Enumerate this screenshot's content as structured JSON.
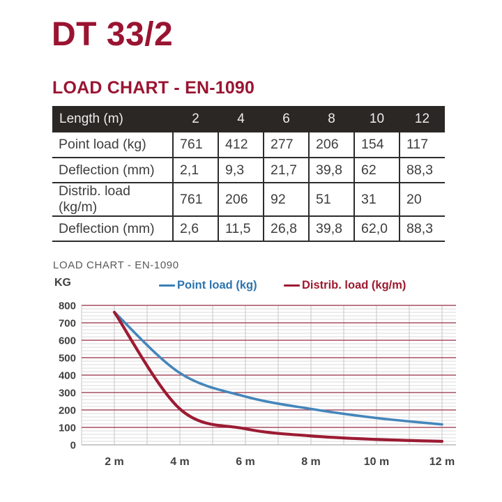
{
  "page": {
    "title": "DT 33/2",
    "section_heading": "LOAD CHART - EN-1090"
  },
  "table": {
    "header_label": "Length (m)",
    "header_columns": [
      "2",
      "4",
      "6",
      "8",
      "10",
      "12"
    ],
    "rows": [
      {
        "label": "Point load (kg)",
        "values": [
          "761",
          "412",
          "277",
          "206",
          "154",
          "117"
        ]
      },
      {
        "label": "Deflection (mm)",
        "values": [
          "2,1",
          "9,3",
          "21,7",
          "39,8",
          "62",
          "88,3"
        ]
      },
      {
        "label": "Distrib. load (kg/m)",
        "values": [
          "761",
          "206",
          "92",
          "51",
          "31",
          "20"
        ]
      },
      {
        "label": "Deflection (mm)",
        "values": [
          "2,6",
          "11,5",
          "26,8",
          "39,8",
          "62,0",
          "88,3"
        ]
      }
    ]
  },
  "chart": {
    "title": "LOAD CHART - EN-1090",
    "y_axis_label": "KG",
    "legend": [
      {
        "label": "Point load (kg)",
        "color": "#3b7fb5"
      },
      {
        "label": "Distrib. load (kg/m)",
        "color": "#9c1b33"
      }
    ]
  },
  "chart_data": {
    "type": "line",
    "title": "LOAD CHART - EN-1090",
    "ylabel": "KG",
    "x": [
      2,
      4,
      6,
      8,
      10,
      12
    ],
    "x_tick_labels": [
      "2 m",
      "4 m",
      "6 m",
      "8 m",
      "10 m",
      "12 m"
    ],
    "series": [
      {
        "name": "Point load (kg)",
        "color": "#4486bb",
        "width": 3.6,
        "values": [
          761,
          412,
          277,
          206,
          154,
          117
        ]
      },
      {
        "name": "Distrib. load (kg/m)",
        "color": "#9c1b33",
        "width": 4.2,
        "values": [
          761,
          206,
          92,
          51,
          31,
          20
        ]
      }
    ],
    "ylim": [
      0,
      800
    ],
    "xlim": [
      1,
      12.45
    ],
    "y_major_step": 100,
    "y_minor_step": 20,
    "x_grid_step": 1,
    "grid": true,
    "legend_position": "top"
  },
  "colors": {
    "brand_maroon": "#9a1431",
    "table_header_bg": "#2a2724",
    "table_border": "#2c2c2c",
    "grid_major": "#a64e60",
    "grid_minor": "#dbdbdb",
    "grid_vertical": "#c6c6c6",
    "axis_zero_line": "#ababab",
    "tick_label": "#414042"
  }
}
